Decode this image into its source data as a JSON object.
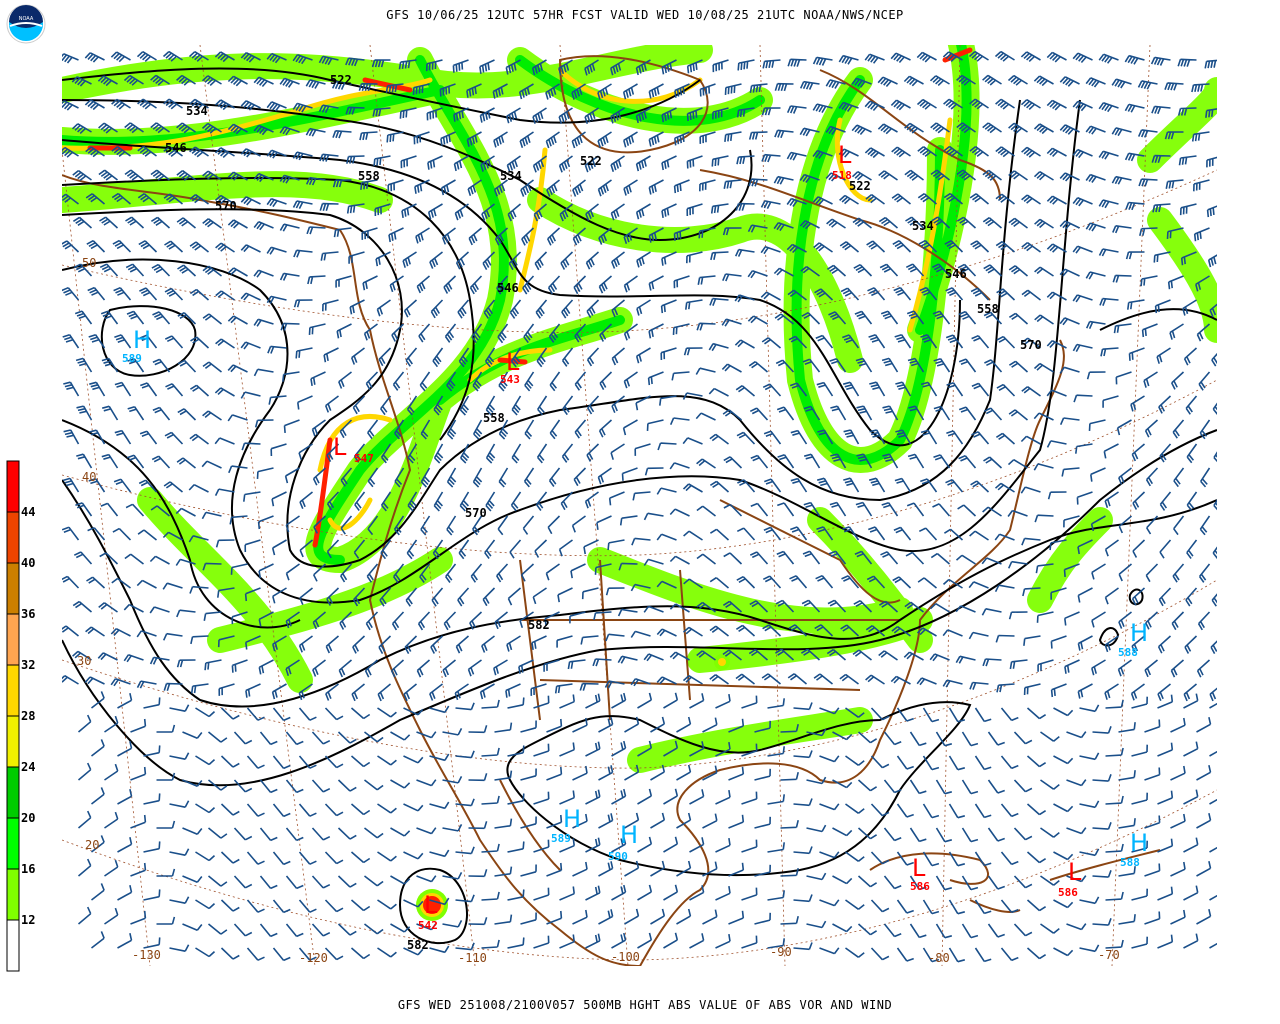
{
  "header": {
    "title": "GFS 10/06/25 12UTC 57HR FCST VALID WED 10/08/25 21UTC NOAA/NWS/NCEP",
    "logo_text": "NOAA"
  },
  "footer": {
    "caption": "GFS WED 251008/2100V057 500MB HGHT ABS VALUE OF ABS VOR AND WIND"
  },
  "colors": {
    "contour": "#000000",
    "barb": "#1a4f8a",
    "coast": "#8b4513",
    "high": "#00b4ff",
    "low": "#ff0000"
  },
  "legend": {
    "ticks": [
      "44",
      "40",
      "36",
      "32",
      "28",
      "24",
      "20",
      "16",
      "12"
    ],
    "colors": [
      "#ff0000",
      "#ee4400",
      "#cc7f00",
      "#ffa550",
      "#ffd700",
      "#f0f000",
      "#00cc00",
      "#00ff00",
      "#80ff00",
      "#ffffff"
    ]
  },
  "contour_labels": [
    "522",
    "534",
    "546",
    "558",
    "570",
    "522",
    "534",
    "546",
    "558",
    "570",
    "582",
    "522",
    "534",
    "546",
    "558",
    "570",
    "582"
  ],
  "highs": [
    {
      "letter": "H",
      "value": "589"
    },
    {
      "letter": "H",
      "value": "589"
    },
    {
      "letter": "H",
      "value": "590"
    },
    {
      "letter": "H",
      "value": "588"
    },
    {
      "letter": "H",
      "value": "588"
    }
  ],
  "lows": [
    {
      "letter": "L",
      "value": "518"
    },
    {
      "letter": "L",
      "value": "547"
    },
    {
      "letter": "L",
      "value": "543"
    },
    {
      "letter": "L",
      "value": "586"
    },
    {
      "letter": "L",
      "value": "586"
    },
    {
      "letter": "L",
      "value": "542"
    }
  ],
  "latitudes": [
    "50",
    "40",
    "30",
    "20"
  ],
  "longitudes": [
    "-130",
    "-120",
    "-110",
    "-100",
    "-90",
    "-80",
    "-70"
  ]
}
